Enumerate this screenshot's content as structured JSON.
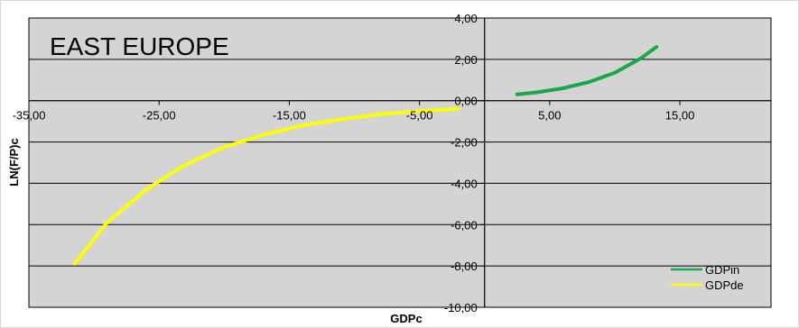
{
  "chart_data": {
    "type": "line",
    "title": "EAST EUROPE",
    "xlabel": "GDPc",
    "ylabel": "LN(F/P)c",
    "xlim": [
      -35,
      22
    ],
    "ylim": [
      -10,
      4
    ],
    "x_ticks": [
      -35,
      -25,
      -15,
      -5,
      5,
      15
    ],
    "x_tick_labels": [
      "-35,00",
      "-25,00",
      "-15,00",
      "-5,00",
      "5,00",
      "15,00"
    ],
    "y_ticks": [
      4,
      2,
      0,
      -2,
      -4,
      -6,
      -8,
      -10
    ],
    "y_tick_labels": [
      "4,00",
      "2,00",
      "0,00",
      "-2,00",
      "-4,00",
      "-6,00",
      "-8,00",
      "-10,00"
    ],
    "grid": "horizontal",
    "legend_position": "bottom-right",
    "series": [
      {
        "name": "GDPin",
        "color": "#1aa84a",
        "x": [
          2.5,
          4,
          6,
          8,
          10,
          12,
          13.2
        ],
        "y": [
          0.3,
          0.4,
          0.6,
          0.9,
          1.35,
          2.05,
          2.6
        ]
      },
      {
        "name": "GDPde",
        "color": "#ffff00",
        "x": [
          -31.5,
          -29,
          -26,
          -23,
          -20,
          -17,
          -14,
          -11,
          -8,
          -5,
          -2
        ],
        "y": [
          -7.9,
          -5.9,
          -4.3,
          -3.1,
          -2.25,
          -1.65,
          -1.2,
          -0.9,
          -0.65,
          -0.5,
          -0.4
        ]
      }
    ]
  }
}
